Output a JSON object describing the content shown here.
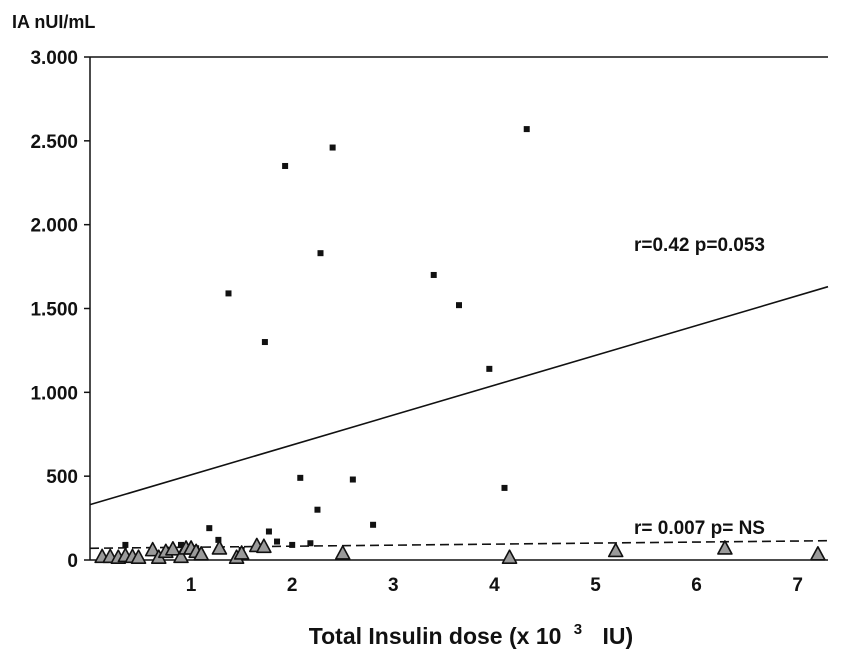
{
  "chart_data": {
    "type": "scatter",
    "ylabel": "IA nUI/mL",
    "xlabel_main": "Total Insulin dose (x 10",
    "xlabel_sup": "3",
    "xlabel_unit": "IU)",
    "xlim": [
      0,
      7.3
    ],
    "ylim": [
      0,
      3000
    ],
    "x_ticks": [
      {
        "value": 1,
        "label": "1"
      },
      {
        "value": 2,
        "label": "2"
      },
      {
        "value": 3,
        "label": "3"
      },
      {
        "value": 4,
        "label": "4"
      },
      {
        "value": 5,
        "label": "5"
      },
      {
        "value": 6,
        "label": "6"
      },
      {
        "value": 7,
        "label": "7"
      }
    ],
    "y_ticks": [
      {
        "value": 0,
        "label": "0"
      },
      {
        "value": 500,
        "label": "500"
      },
      {
        "value": 1000,
        "label": "1.000"
      },
      {
        "value": 1500,
        "label": "1.500"
      },
      {
        "value": 2000,
        "label": "2.000"
      },
      {
        "value": 2500,
        "label": "2.500"
      },
      {
        "value": 3000,
        "label": "3.000"
      }
    ],
    "grid": false,
    "series": [
      {
        "marker": "square",
        "points": [
          {
            "x": 0.35,
            "y": 90
          },
          {
            "x": 0.6,
            "y": 40
          },
          {
            "x": 0.75,
            "y": 60
          },
          {
            "x": 0.9,
            "y": 90
          },
          {
            "x": 1.05,
            "y": 70
          },
          {
            "x": 1.18,
            "y": 190
          },
          {
            "x": 1.27,
            "y": 120
          },
          {
            "x": 1.37,
            "y": 1590
          },
          {
            "x": 1.5,
            "y": 60
          },
          {
            "x": 1.65,
            "y": 80
          },
          {
            "x": 1.73,
            "y": 1300
          },
          {
            "x": 1.77,
            "y": 170
          },
          {
            "x": 1.85,
            "y": 110
          },
          {
            "x": 1.93,
            "y": 2350
          },
          {
            "x": 2.0,
            "y": 90
          },
          {
            "x": 2.08,
            "y": 490
          },
          {
            "x": 2.18,
            "y": 100
          },
          {
            "x": 2.25,
            "y": 300
          },
          {
            "x": 2.28,
            "y": 1830
          },
          {
            "x": 2.4,
            "y": 2460
          },
          {
            "x": 2.6,
            "y": 480
          },
          {
            "x": 2.8,
            "y": 210
          },
          {
            "x": 3.4,
            "y": 1700
          },
          {
            "x": 3.65,
            "y": 1520
          },
          {
            "x": 3.95,
            "y": 1140
          },
          {
            "x": 4.1,
            "y": 430
          },
          {
            "x": 4.32,
            "y": 2570
          }
        ],
        "trend": {
          "style": "solid",
          "y_at_0": 330,
          "y_at_7.3": 1630,
          "label": "r=0.42 p=0.053"
        }
      },
      {
        "marker": "triangle",
        "points": [
          {
            "x": 0.12,
            "y": 10
          },
          {
            "x": 0.2,
            "y": 10
          },
          {
            "x": 0.28,
            "y": 5
          },
          {
            "x": 0.35,
            "y": 15
          },
          {
            "x": 0.42,
            "y": 10
          },
          {
            "x": 0.48,
            "y": 5
          },
          {
            "x": 0.62,
            "y": 50
          },
          {
            "x": 0.68,
            "y": 5
          },
          {
            "x": 0.75,
            "y": 40
          },
          {
            "x": 0.82,
            "y": 55
          },
          {
            "x": 0.9,
            "y": 10
          },
          {
            "x": 0.95,
            "y": 60
          },
          {
            "x": 1.0,
            "y": 60
          },
          {
            "x": 1.05,
            "y": 40
          },
          {
            "x": 1.1,
            "y": 25
          },
          {
            "x": 1.28,
            "y": 60
          },
          {
            "x": 1.45,
            "y": 5
          },
          {
            "x": 1.5,
            "y": 30
          },
          {
            "x": 1.65,
            "y": 75
          },
          {
            "x": 1.72,
            "y": 70
          },
          {
            "x": 2.5,
            "y": 30
          },
          {
            "x": 4.15,
            "y": 5
          },
          {
            "x": 5.2,
            "y": 45
          },
          {
            "x": 6.28,
            "y": 60
          },
          {
            "x": 7.2,
            "y": 25
          }
        ],
        "trend": {
          "style": "dashed",
          "y_at_0": 70,
          "y_at_7.3": 115,
          "label": "r= 0.007 p= NS"
        }
      }
    ]
  }
}
